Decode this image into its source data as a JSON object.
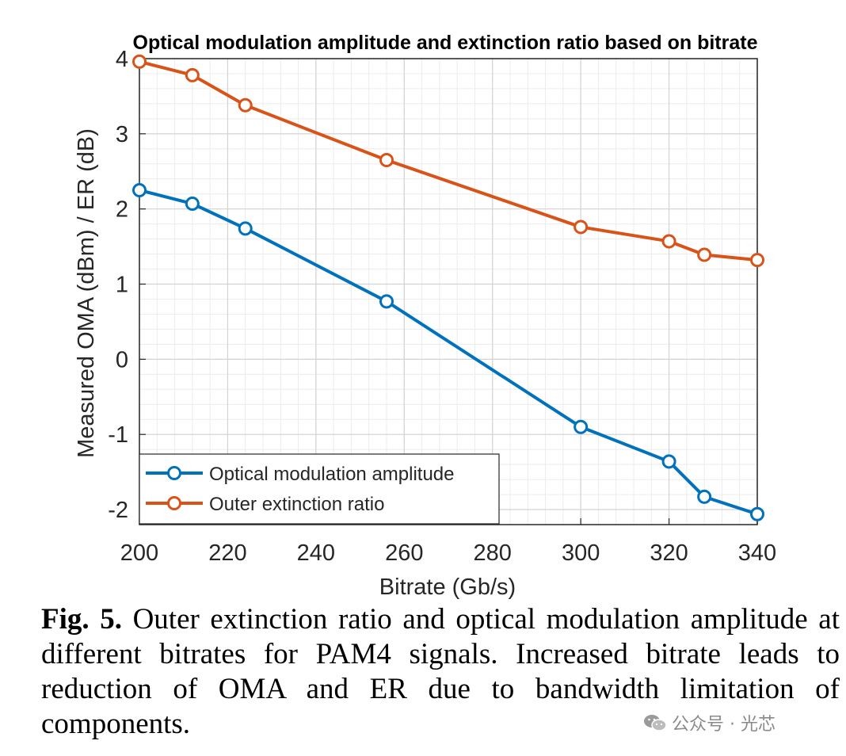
{
  "chart_data": {
    "type": "line",
    "title": "Optical modulation amplitude and extinction ratio based on bitrate",
    "xlabel": "Bitrate (Gb/s)",
    "ylabel": "Measured OMA (dBm) / ER (dB)",
    "xlim": [
      200,
      340
    ],
    "ylim": [
      -2.2,
      4
    ],
    "xticks": [
      200,
      220,
      240,
      260,
      280,
      300,
      320,
      340
    ],
    "yticks": [
      -2,
      -1,
      0,
      1,
      2,
      3,
      4
    ],
    "grid": true,
    "minor_grid": true,
    "legend_position": "bottom-left",
    "series": [
      {
        "name": "Optical modulation amplitude",
        "color": "#0072BD",
        "marker": "circle",
        "x": [
          200,
          212,
          224,
          256,
          300,
          320,
          328,
          340
        ],
        "y": [
          2.25,
          2.07,
          1.74,
          0.77,
          -0.9,
          -1.36,
          -1.83,
          -2.06
        ]
      },
      {
        "name": "Outer extinction ratio",
        "color": "#D95319",
        "marker": "circle",
        "x": [
          200,
          212,
          224,
          256,
          300,
          320,
          328,
          340
        ],
        "y": [
          3.96,
          3.78,
          3.38,
          2.65,
          1.76,
          1.57,
          1.39,
          1.32
        ]
      }
    ]
  },
  "caption": {
    "figure_number": "Fig. 5.",
    "text": "Outer extinction ratio and optical modulation amplitude at different bitrates for PAM4 signals. Increased bitrate leads to reduction of OMA and ER due to bandwidth limitation of components."
  },
  "watermark": {
    "icon": "wechat-icon",
    "text": "公众号 · 光芯"
  }
}
